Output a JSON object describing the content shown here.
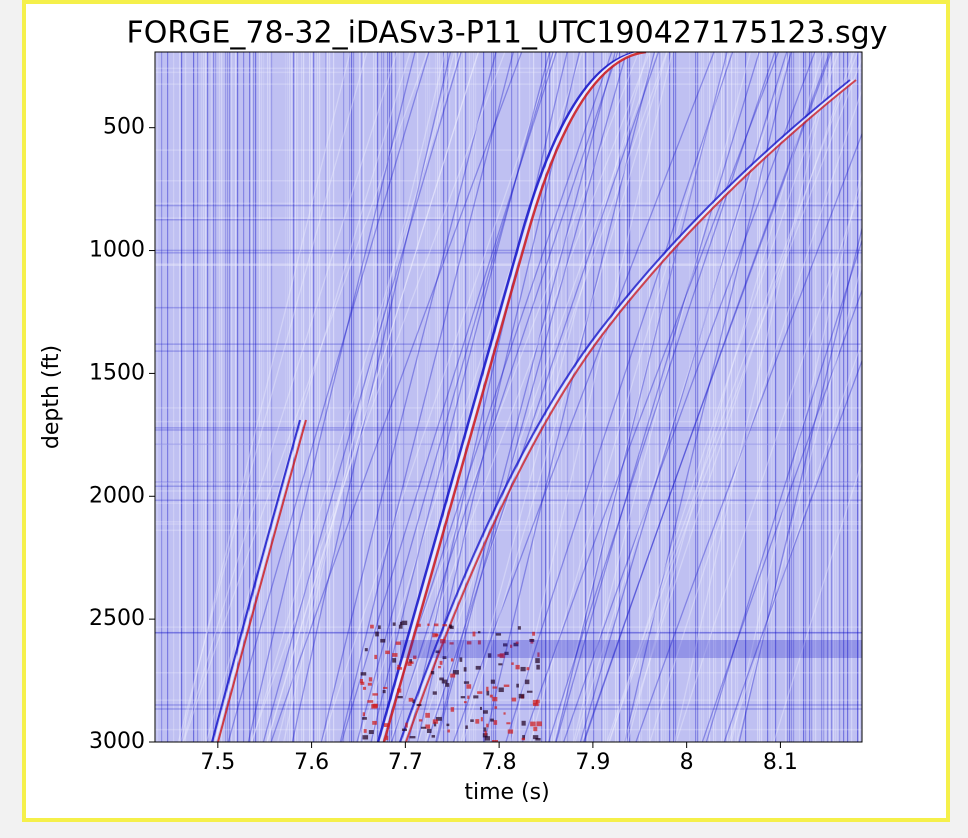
{
  "chart_data": {
    "type": "image",
    "title": "FORGE_78-32_iDASv3-P11_UTC190427175123.sgy",
    "x_label": "time (s)",
    "y_label": "depth (ft)",
    "xlim": [
      7.433,
      8.187
    ],
    "xticks": [
      7.5,
      7.6,
      7.7,
      7.8,
      7.9,
      8.0,
      8.1
    ],
    "ylim": [
      192,
      3000
    ],
    "y_inverted": true,
    "yticks": [
      500,
      1000,
      1500,
      2000,
      2500,
      3000
    ],
    "colormap": "seismic"
  }
}
